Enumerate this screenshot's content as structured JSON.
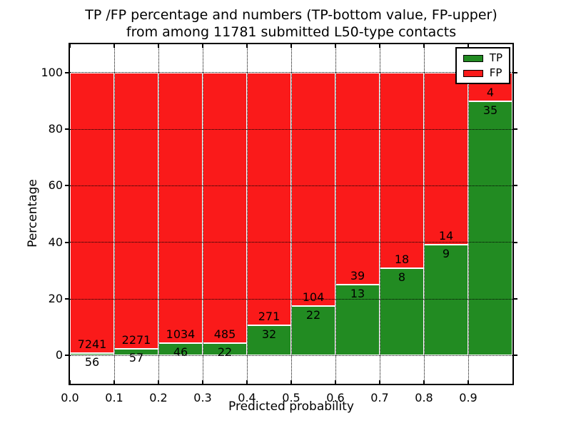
{
  "chart_data": {
    "type": "bar",
    "stacked": true,
    "orientation": "vertical",
    "title_lines": [
      "TP /FP percentage and numbers (TP-bottom value, FP-upper)",
      "from among 11781 submitted L50-type contacts"
    ],
    "xlabel": "Predicted probability",
    "ylabel": "Percentage",
    "xlim": [
      0.0,
      1.0
    ],
    "ylim": [
      -10,
      110
    ],
    "x_tick_labels": [
      "0.0",
      "0.1",
      "0.2",
      "0.3",
      "0.4",
      "0.5",
      "0.6",
      "0.7",
      "0.8",
      "0.9"
    ],
    "y_tick_values": [
      0,
      20,
      40,
      60,
      80,
      100
    ],
    "grid": {
      "visible": true,
      "line_style": "dotted",
      "color": "#000000",
      "drawn_above_bars": true
    },
    "bin_width": 0.1,
    "categories": [
      "0.0-0.1",
      "0.1-0.2",
      "0.2-0.3",
      "0.3-0.4",
      "0.4-0.5",
      "0.5-0.6",
      "0.6-0.7",
      "0.7-0.8",
      "0.8-0.9",
      "0.9-1.0"
    ],
    "series": [
      {
        "name": "TP",
        "color": "#228b22",
        "counts": [
          56,
          57,
          46,
          22,
          32,
          22,
          13,
          8,
          9,
          35
        ]
      },
      {
        "name": "FP",
        "color": "#fa1a1a",
        "counts": [
          7241,
          2271,
          1034,
          485,
          271,
          104,
          39,
          18,
          14,
          4
        ]
      }
    ],
    "tp_percent_heights": [
      0.77,
      2.45,
      4.26,
      4.34,
      10.56,
      17.46,
      25.0,
      30.77,
      39.13,
      89.74
    ],
    "total_contacts": 11781,
    "legend": {
      "position": "upper right",
      "labels": [
        "TP",
        "FP"
      ]
    }
  },
  "colors": {
    "tp": "#228b22",
    "fp": "#fa1a1a",
    "background": "#ffffff",
    "text": "#000000"
  }
}
